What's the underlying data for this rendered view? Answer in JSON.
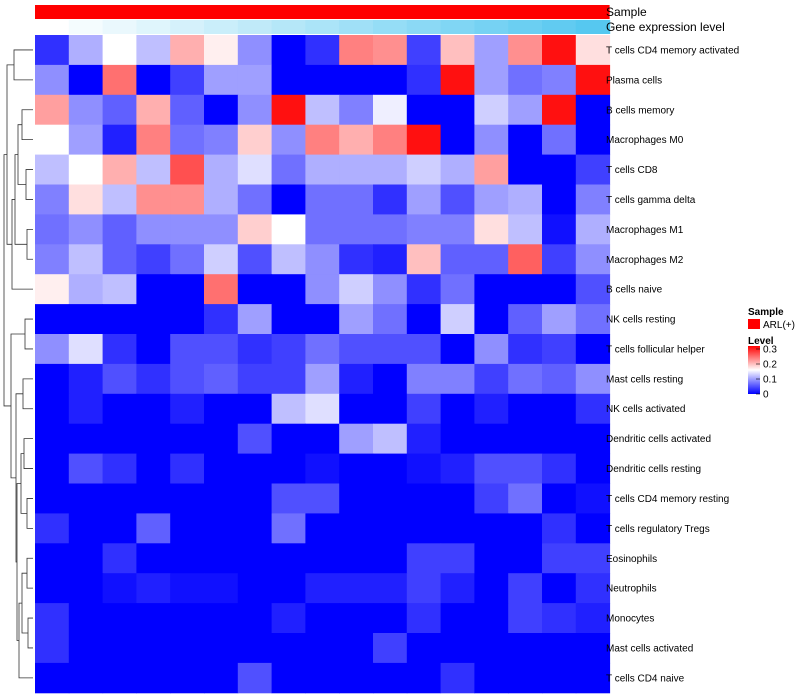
{
  "chart_data": {
    "type": "heatmap",
    "annotation_tracks": [
      {
        "name": "Sample",
        "color": "#ff0000"
      },
      {
        "name": "Gene expression level",
        "gradient": [
          "#ffffff",
          "#56c8f0"
        ]
      }
    ],
    "rows": [
      "T cells CD4 memory activated",
      "Plasma cells",
      "B cells memory",
      "Macrophages M0",
      "T cells CD8",
      "T cells gamma delta",
      "Macrophages M1",
      "Macrophages M2",
      "B cells naive",
      "NK cells resting",
      "T cells follicular helper",
      "Mast cells resting",
      "NK cells activated",
      "Dendritic cells activated",
      "Dendritic cells resting",
      "T cells CD4 memory resting",
      "T cells regulatory  Tregs",
      "Eosinophils",
      "Neutrophils",
      "Monocytes",
      "Mast cells activated",
      "T cells CD4 naive"
    ],
    "n_columns": 17,
    "values": [
      [
        0.03,
        0.11,
        0.16,
        0.12,
        0.21,
        0.17,
        0.09,
        0.0,
        0.03,
        0.24,
        0.23,
        0.04,
        0.2,
        0.1,
        0.23,
        0.31,
        0.18
      ],
      [
        0.09,
        0.0,
        0.25,
        0.0,
        0.04,
        0.1,
        0.1,
        0.0,
        0.0,
        0.0,
        0.0,
        0.03,
        0.31,
        0.1,
        0.07,
        0.08,
        0.31
      ],
      [
        0.22,
        0.09,
        0.06,
        0.21,
        0.06,
        0.0,
        0.09,
        0.31,
        0.12,
        0.08,
        0.15,
        0.0,
        0.0,
        0.13,
        0.1,
        0.31,
        0.0
      ],
      [
        0.16,
        0.1,
        0.02,
        0.24,
        0.07,
        0.08,
        0.19,
        0.09,
        0.24,
        0.21,
        0.24,
        0.31,
        0.0,
        0.09,
        0.0,
        0.07,
        0.0
      ],
      [
        0.12,
        0.16,
        0.21,
        0.12,
        0.27,
        0.11,
        0.14,
        0.07,
        0.11,
        0.11,
        0.11,
        0.13,
        0.11,
        0.22,
        0.0,
        0.0,
        0.04
      ],
      [
        0.08,
        0.18,
        0.12,
        0.23,
        0.23,
        0.11,
        0.07,
        0.0,
        0.07,
        0.07,
        0.03,
        0.1,
        0.05,
        0.1,
        0.11,
        0.0,
        0.08
      ],
      [
        0.07,
        0.09,
        0.06,
        0.09,
        0.09,
        0.09,
        0.19,
        0.16,
        0.07,
        0.07,
        0.07,
        0.08,
        0.08,
        0.18,
        0.12,
        0.01,
        0.11
      ],
      [
        0.08,
        0.12,
        0.06,
        0.04,
        0.07,
        0.13,
        0.05,
        0.12,
        0.09,
        0.03,
        0.02,
        0.2,
        0.06,
        0.06,
        0.26,
        0.04,
        0.09
      ],
      [
        0.17,
        0.11,
        0.12,
        0.0,
        0.0,
        0.25,
        0.0,
        0.0,
        0.09,
        0.13,
        0.09,
        0.03,
        0.07,
        0.0,
        0.0,
        0.0,
        0.05
      ],
      [
        0.0,
        0.0,
        0.0,
        0.0,
        0.0,
        0.03,
        0.1,
        0.0,
        0.0,
        0.1,
        0.07,
        0.0,
        0.13,
        0.0,
        0.06,
        0.1,
        0.07
      ],
      [
        0.09,
        0.14,
        0.03,
        0.0,
        0.05,
        0.05,
        0.03,
        0.04,
        0.07,
        0.05,
        0.05,
        0.05,
        0.0,
        0.09,
        0.03,
        0.04,
        0.0
      ],
      [
        0.0,
        0.02,
        0.05,
        0.03,
        0.05,
        0.06,
        0.04,
        0.04,
        0.1,
        0.02,
        0.0,
        0.08,
        0.08,
        0.04,
        0.07,
        0.06,
        0.09
      ],
      [
        0.0,
        0.02,
        0.0,
        0.0,
        0.02,
        0.0,
        0.0,
        0.12,
        0.14,
        0.0,
        0.0,
        0.04,
        0.0,
        0.02,
        0.0,
        0.0,
        0.03
      ],
      [
        0.0,
        0.0,
        0.0,
        0.0,
        0.0,
        0.0,
        0.05,
        0.0,
        0.0,
        0.1,
        0.12,
        0.02,
        0.0,
        0.0,
        0.0,
        0.0,
        0.0
      ],
      [
        0.0,
        0.05,
        0.03,
        0.0,
        0.03,
        0.0,
        0.0,
        0.0,
        0.01,
        0.0,
        0.0,
        0.01,
        0.02,
        0.05,
        0.05,
        0.03,
        0.0
      ],
      [
        0.0,
        0.0,
        0.0,
        0.0,
        0.0,
        0.0,
        0.0,
        0.05,
        0.05,
        0.0,
        0.0,
        0.0,
        0.0,
        0.04,
        0.07,
        0.0,
        0.01
      ],
      [
        0.03,
        0.0,
        0.0,
        0.06,
        0.0,
        0.0,
        0.0,
        0.07,
        0.0,
        0.0,
        0.0,
        0.0,
        0.0,
        0.0,
        0.0,
        0.03,
        0.0
      ],
      [
        0.0,
        0.0,
        0.03,
        0.0,
        0.0,
        0.0,
        0.0,
        0.0,
        0.0,
        0.0,
        0.0,
        0.04,
        0.04,
        0.0,
        0.0,
        0.04,
        0.04
      ],
      [
        0.0,
        0.0,
        0.01,
        0.02,
        0.01,
        0.01,
        0.0,
        0.0,
        0.02,
        0.02,
        0.02,
        0.04,
        0.02,
        0.0,
        0.04,
        0.0,
        0.03
      ],
      [
        0.03,
        0.0,
        0.0,
        0.0,
        0.0,
        0.0,
        0.0,
        0.02,
        0.0,
        0.0,
        0.0,
        0.03,
        0.0,
        0.0,
        0.04,
        0.03,
        0.02
      ],
      [
        0.03,
        0.0,
        0.0,
        0.0,
        0.0,
        0.0,
        0.0,
        0.0,
        0.0,
        0.0,
        0.04,
        0.0,
        0.0,
        0.0,
        0.0,
        0.0,
        0.0
      ],
      [
        0.0,
        0.0,
        0.0,
        0.0,
        0.0,
        0.0,
        0.05,
        0.0,
        0.0,
        0.0,
        0.0,
        0.0,
        0.03,
        0.0,
        0.0,
        0.0,
        0.0
      ]
    ],
    "color_scale": {
      "min": 0,
      "mid": 0.16,
      "max": 0.32,
      "colors": [
        "#0000ff",
        "#ffffff",
        "#ff0000"
      ]
    },
    "legend": {
      "sample": {
        "title": "Sample",
        "entry": "ARL(+)",
        "color": "#ff0000"
      },
      "level": {
        "title": "Level",
        "ticks": [
          "0.3",
          "0.2",
          "0.1",
          "0"
        ],
        "tick_values": [
          0.3,
          0.2,
          0.1,
          0
        ]
      }
    },
    "dendrogram": "rows"
  }
}
